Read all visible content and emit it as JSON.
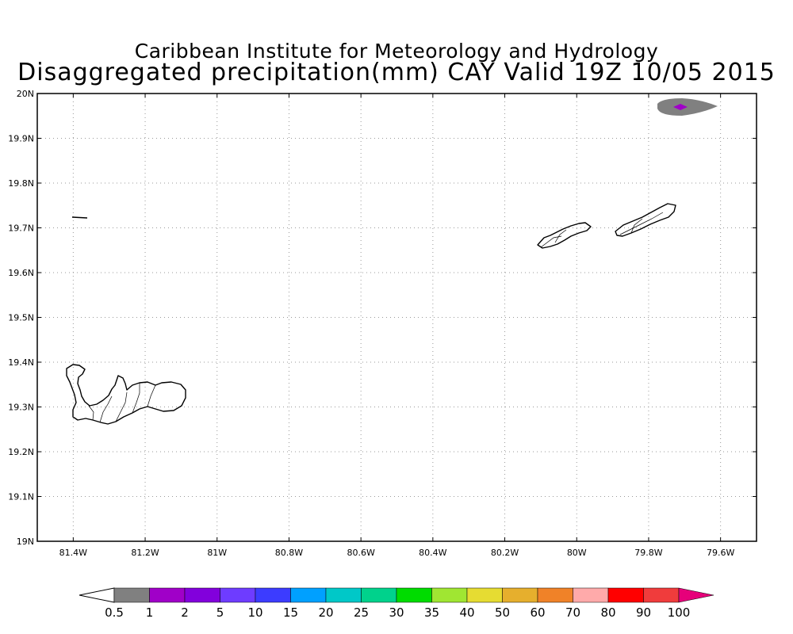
{
  "title_line1": "Caribbean Institute for Meteorology and Hydrology",
  "title_line2": "Disaggregated precipitation(mm) CAY Valid 19Z 10/05 2015",
  "map": {
    "lon_range": [
      -81.5,
      -79.5
    ],
    "lat_range": [
      19.0,
      20.0
    ],
    "grid": true,
    "x_ticks": [
      {
        "lon": -81.4,
        "label": "81.4W"
      },
      {
        "lon": -81.2,
        "label": "81.2W"
      },
      {
        "lon": -81.0,
        "label": "81W"
      },
      {
        "lon": -80.8,
        "label": "80.8W"
      },
      {
        "lon": -80.6,
        "label": "80.6W"
      },
      {
        "lon": -80.4,
        "label": "80.4W"
      },
      {
        "lon": -80.2,
        "label": "80.2W"
      },
      {
        "lon": -80.0,
        "label": "80W"
      },
      {
        "lon": -79.8,
        "label": "79.8W"
      },
      {
        "lon": -79.6,
        "label": "79.6W"
      }
    ],
    "y_ticks": [
      {
        "lat": 20.0,
        "label": "20N"
      },
      {
        "lat": 19.9,
        "label": "19.9N"
      },
      {
        "lat": 19.8,
        "label": "19.8N"
      },
      {
        "lat": 19.7,
        "label": "19.7N"
      },
      {
        "lat": 19.6,
        "label": "19.6N"
      },
      {
        "lat": 19.5,
        "label": "19.5N"
      },
      {
        "lat": 19.4,
        "label": "19.4N"
      },
      {
        "lat": 19.3,
        "label": "19.3N"
      },
      {
        "lat": 19.2,
        "label": "19.2N"
      },
      {
        "lat": 19.1,
        "label": "19.1N"
      },
      {
        "lat": 19.0,
        "label": "19N"
      }
    ],
    "precip_cells": [
      {
        "lon": -79.72,
        "lat": 19.97,
        "amount_class": "0.5-1",
        "color": "#808080"
      },
      {
        "lon": -79.71,
        "lat": 19.97,
        "amount_class": "1-2",
        "color": "#a000c8"
      }
    ]
  },
  "colorbar": {
    "colors": [
      "#ffffff",
      "#808080",
      "#a000c8",
      "#8200dc",
      "#6e3cff",
      "#3c3cff",
      "#00a0ff",
      "#00c8c8",
      "#00d28c",
      "#00dc00",
      "#a0e632",
      "#e6dc32",
      "#e6af2d",
      "#f08228",
      "#ffaaaa",
      "#ff0000",
      "#f03c3c",
      "#e6007a"
    ],
    "labels": [
      "0.5",
      "1",
      "2",
      "5",
      "10",
      "15",
      "20",
      "25",
      "30",
      "35",
      "40",
      "50",
      "60",
      "70",
      "80",
      "90",
      "100"
    ]
  }
}
